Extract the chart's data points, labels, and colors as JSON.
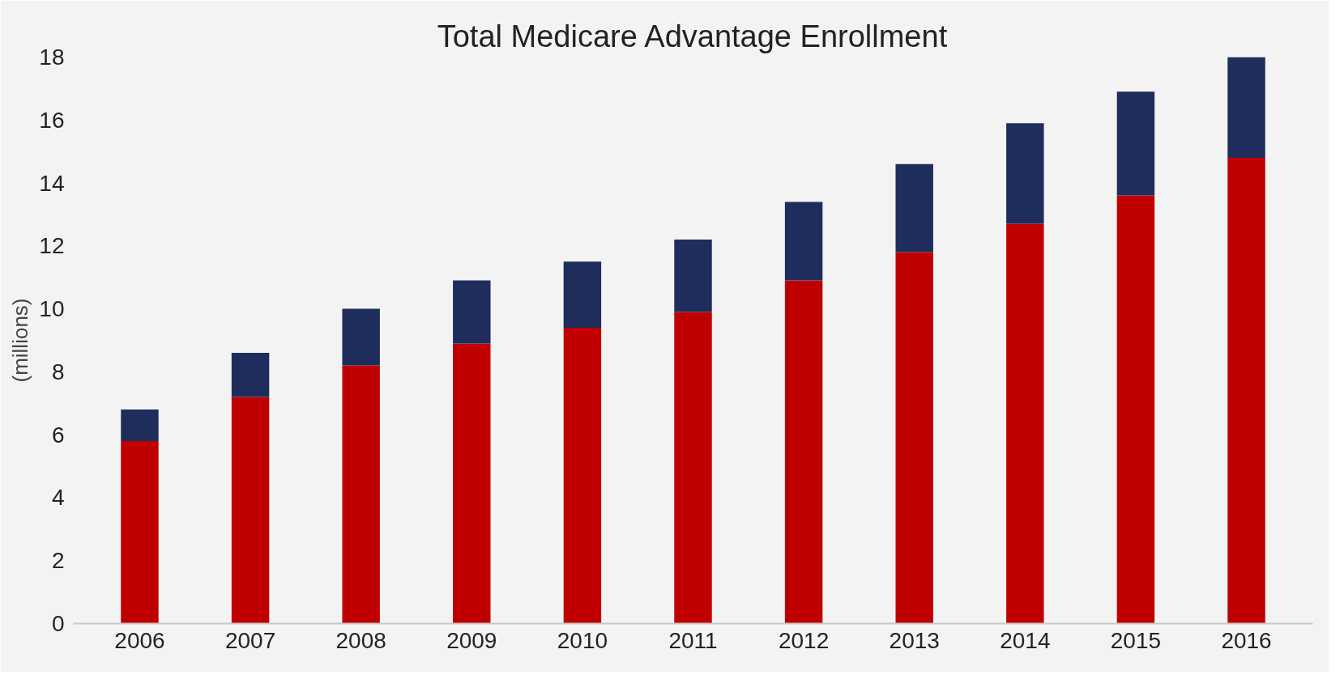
{
  "chart_data": {
    "type": "bar",
    "title": "Total Medicare Advantage Enrollment",
    "ylabel": "(millions)",
    "stacked": true,
    "categories": [
      "2006",
      "2007",
      "2008",
      "2009",
      "2010",
      "2011",
      "2012",
      "2013",
      "2014",
      "2015",
      "2016"
    ],
    "series": [
      {
        "color": "#c00000",
        "values": [
          5.8,
          7.2,
          8.2,
          8.9,
          9.4,
          9.9,
          10.9,
          11.8,
          12.7,
          13.6,
          14.8
        ]
      },
      {
        "color": "#1f2d5c",
        "values": [
          1.0,
          1.4,
          1.8,
          2.0,
          2.1,
          2.3,
          2.5,
          2.8,
          3.2,
          3.3,
          3.2
        ]
      }
    ],
    "ylim": [
      0,
      18
    ],
    "yticks": [
      0,
      2,
      4,
      6,
      8,
      10,
      12,
      14,
      16,
      18
    ],
    "grid": false
  }
}
